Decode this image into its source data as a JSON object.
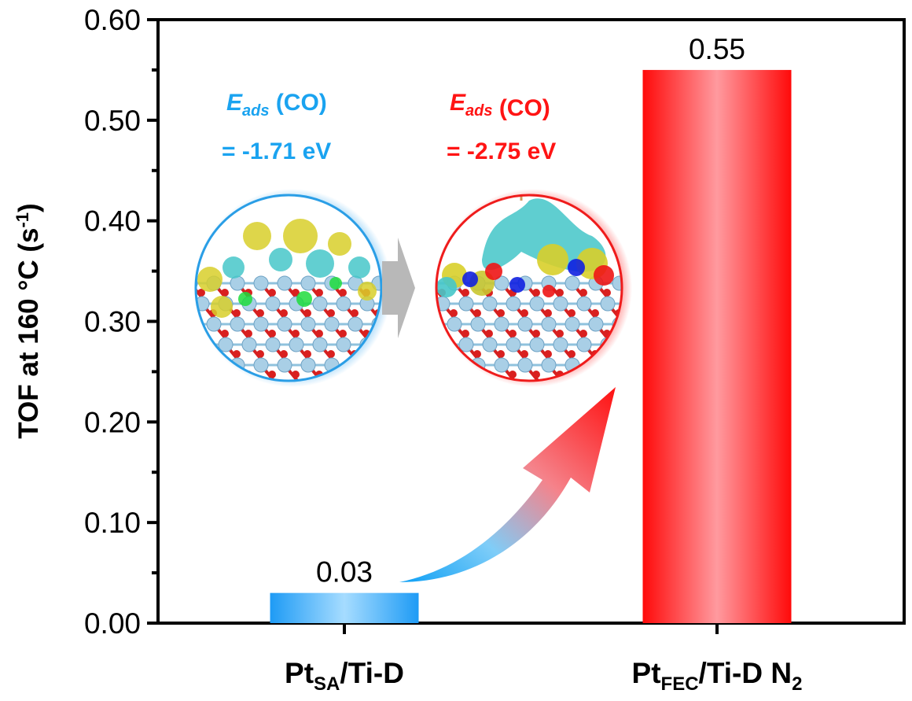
{
  "chart_data": {
    "type": "bar",
    "title": "",
    "xlabel": "",
    "ylabel": "TOF at 160 °C (s⁻¹)",
    "ylabel_parts": {
      "main": "TOF at 160 °C (s",
      "sup": "-1",
      "close": ")"
    },
    "ylim": [
      0,
      0.6
    ],
    "yticks": [
      0.0,
      0.1,
      0.2,
      0.3,
      0.4,
      0.5,
      0.6
    ],
    "ytick_labels": [
      "0.00",
      "0.10",
      "0.20",
      "0.30",
      "0.40",
      "0.50",
      "0.60"
    ],
    "grid": false,
    "categories": [
      "Pt_SA/Ti-D",
      "Pt_FEC/Ti-D N_2"
    ],
    "category_labels": [
      {
        "base": "Pt",
        "sub": "SA",
        "rest": "/Ti-D",
        "sub2": ""
      },
      {
        "base": "Pt",
        "sub": "FEC",
        "rest": "/Ti-D N",
        "sub2": "2"
      }
    ],
    "values": [
      0.03,
      0.55
    ],
    "data_labels": [
      "0.03",
      "0.55"
    ],
    "bar_colors": [
      {
        "edge": "#1e9bf5",
        "center": "#a6dcff"
      },
      {
        "edge": "#ff0a0a",
        "center": "#ff9a9f"
      }
    ],
    "annotations": [
      {
        "label_E": "E",
        "label_sub": "ads",
        "label_rest": " (CO)",
        "value": "= -1.71 eV",
        "color": "#1aa3f0"
      },
      {
        "label_E": "E",
        "label_sub": "ads",
        "label_rest": " (CO)",
        "value": "= -2.75 eV",
        "color": "#ff1414"
      }
    ],
    "inset_images": [
      {
        "name": "Pt_SA/Ti-D charge density difference",
        "ring_color": "#2a9ee6"
      },
      {
        "name": "Pt_FEC/Ti-D N2 charge density difference",
        "ring_color": "#ef1c1c"
      }
    ]
  }
}
